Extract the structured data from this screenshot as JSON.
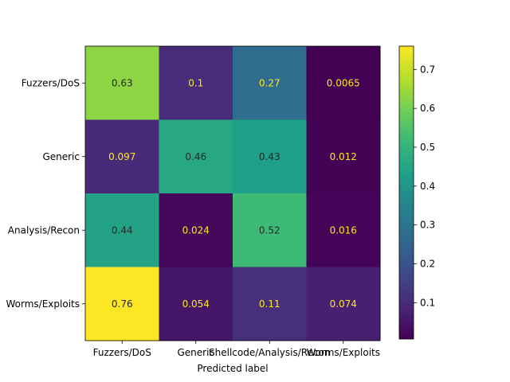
{
  "chart_data": {
    "type": "heatmap",
    "title": "",
    "xlabel": "Predicted label",
    "ylabel": "",
    "x_categories": [
      "Fuzzers/DoS",
      "Generic",
      "Shellcode/Analysis/Recon",
      "Worms/Exploits"
    ],
    "y_categories": [
      "Fuzzers/DoS",
      "Generic",
      "Analysis/Recon",
      "Worms/Exploits"
    ],
    "values": [
      [
        0.63,
        0.1,
        0.27,
        0.0065
      ],
      [
        0.097,
        0.46,
        0.43,
        0.012
      ],
      [
        0.44,
        0.024,
        0.52,
        0.016
      ],
      [
        0.76,
        0.054,
        0.11,
        0.074
      ]
    ],
    "cell_labels": [
      [
        "0.63",
        "0.1",
        "0.27",
        "0.0065"
      ],
      [
        "0.097",
        "0.46",
        "0.43",
        "0.012"
      ],
      [
        "0.44",
        "0.024",
        "0.52",
        "0.016"
      ],
      [
        "0.76",
        "0.054",
        "0.11",
        "0.074"
      ]
    ],
    "colormap": "viridis",
    "colorbar": {
      "range": [
        0.0065,
        0.76
      ],
      "ticks": [
        0.1,
        0.2,
        0.3,
        0.4,
        0.5,
        0.6,
        0.7
      ],
      "tick_labels": [
        "0.1",
        "0.2",
        "0.3",
        "0.4",
        "0.5",
        "0.6",
        "0.7"
      ]
    },
    "text_colors": {
      "dark": "#262626",
      "light": "#fde725"
    },
    "grid": false
  }
}
